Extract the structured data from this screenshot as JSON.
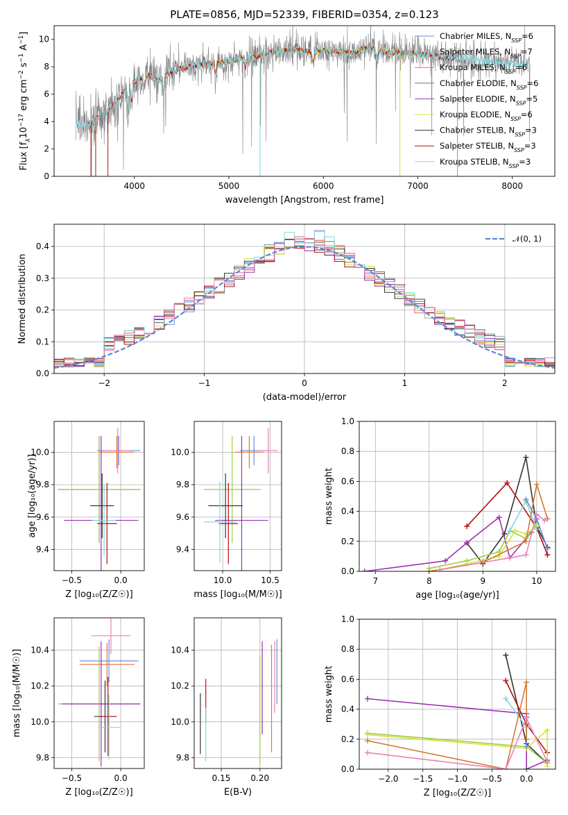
{
  "colors": {
    "Chabrier MILES": "#6a8fd3",
    "Salpeter MILES": "#7fd3d3",
    "Kroupa MILES": "#f07030",
    "Chabrier ELODIE": "#777777",
    "Salpeter ELODIE": "#9b30b0",
    "Kroupa ELODIE": "#d8e040",
    "Chabrier STELIB": "#333333",
    "Salpeter STELIB": "#b01010",
    "Kroupa STELIB": "#7fd8e0",
    "pink": "#e880b8",
    "green": "#9ad040",
    "orange": "#d07a30"
  },
  "chart_data": [
    {
      "id": "spectrum",
      "type": "line",
      "title": "PLATE=0856, MJD=52339, FIBERID=0354, z=0.123",
      "xlabel": "wavelength [Angstrom, rest frame]",
      "ylabel_parts": [
        "Flux [f",
        "λ",
        "10",
        "−17",
        " erg cm",
        "−2",
        " s",
        "−1",
        " A",
        "−1",
        "]"
      ],
      "xlim": [
        3150,
        8450
      ],
      "ylim": [
        0,
        11
      ],
      "xticks": [
        4000,
        5000,
        6000,
        7000,
        8000
      ],
      "yticks": [
        0,
        2,
        4,
        6,
        8,
        10
      ],
      "legend_position": "top-right",
      "continuum_anchors": [
        [
          3380,
          3.9
        ],
        [
          3500,
          3.7
        ],
        [
          3600,
          4.3
        ],
        [
          3680,
          4.5
        ],
        [
          3760,
          5.1
        ],
        [
          3860,
          5.9
        ],
        [
          3950,
          6.7
        ],
        [
          4050,
          7.1
        ],
        [
          4150,
          7.3
        ],
        [
          4250,
          7.0
        ],
        [
          4350,
          7.5
        ],
        [
          4500,
          7.9
        ],
        [
          4700,
          8.2
        ],
        [
          4900,
          8.3
        ],
        [
          5100,
          8.5
        ],
        [
          5300,
          8.8
        ],
        [
          5500,
          9.1
        ],
        [
          5700,
          9.2
        ],
        [
          5900,
          9.1
        ],
        [
          6100,
          9.2
        ],
        [
          6300,
          9.0
        ],
        [
          6500,
          9.4
        ],
        [
          6700,
          9.0
        ],
        [
          6900,
          9.0
        ],
        [
          7100,
          8.9
        ],
        [
          7300,
          8.6
        ],
        [
          7500,
          8.6
        ],
        [
          7700,
          8.4
        ],
        [
          7900,
          8.3
        ],
        [
          8100,
          8.1
        ],
        [
          8200,
          8.2
        ]
      ],
      "legend": [
        {
          "label": "Chabrier MILES, N",
          "sub": "SSP",
          "val": "=6"
        },
        {
          "label": "Salpeter MILES, N",
          "sub": "SSP",
          "val": "=7"
        },
        {
          "label": "Kroupa MILES, N",
          "sub": "SSP",
          "val": "=6"
        },
        {
          "label": "Chabrier ELODIE, N",
          "sub": "SSP",
          "val": "=6"
        },
        {
          "label": "Salpeter ELODIE, N",
          "sub": "SSP",
          "val": "=5"
        },
        {
          "label": "Kroupa ELODIE, N",
          "sub": "SSP",
          "val": "=6"
        },
        {
          "label": "Chabrier STELIB, N",
          "sub": "SSP",
          "val": "=3"
        },
        {
          "label": "Salpeter STELIB, N",
          "sub": "SSP",
          "val": "=3"
        },
        {
          "label": "Kroupa STELIB, N",
          "sub": "SSP",
          "val": "=3"
        }
      ]
    },
    {
      "id": "residuals",
      "type": "step",
      "xlabel": "(data-model)/error",
      "ylabel": "Normed distribution",
      "xlim": [
        -2.5,
        2.5
      ],
      "ylim": [
        0,
        0.47
      ],
      "xticks": [
        -2,
        -1,
        0,
        1,
        2
      ],
      "xticklabels": [
        "−2",
        "−1",
        "0",
        "1",
        "2"
      ],
      "yticks": [
        0.0,
        0.1,
        0.2,
        0.3,
        0.4
      ],
      "grid": true,
      "legend_position": "top-right",
      "legend": "𝒩(0, 1)",
      "bins": 50,
      "series_colors": [
        "#6a8fd3",
        "#f07030",
        "#777777",
        "#9b30b0",
        "#d8e040",
        "#333333",
        "#b01010",
        "#7fd8e0",
        "#e880b8"
      ]
    },
    {
      "id": "age-vs-Z",
      "type": "errorbar",
      "xlabel": "Z [log₁₀(Z/Z☉)]",
      "ylabel": "age  [log₁₀(age/yr)]",
      "xlim": [
        -0.68,
        0.24
      ],
      "ylim": [
        9.27,
        10.19
      ],
      "xticks": [
        -0.5,
        0.0
      ],
      "xticklabels": [
        "−0.5",
        "0.0"
      ],
      "yticks": [
        9.4,
        9.6,
        9.8,
        10.0
      ],
      "grid": true,
      "points": [
        {
          "x": -0.02,
          "y": 10.01,
          "xerr": 0.22,
          "yerr": 0.09,
          "c": "#6a8fd3"
        },
        {
          "x": -0.04,
          "y": 10.0,
          "xerr": 0.18,
          "yerr": 0.1,
          "c": "#f07030"
        },
        {
          "x": -0.22,
          "y": 9.77,
          "xerr": 0.42,
          "yerr": 0.33,
          "c": "#777777"
        },
        {
          "x": -0.22,
          "y": 9.77,
          "xerr": 0.42,
          "yerr": 0.33,
          "c": "#9ad040"
        },
        {
          "x": -0.2,
          "y": 9.58,
          "xerr": 0.38,
          "yerr": 0.52,
          "c": "#9b30b0"
        },
        {
          "x": -0.19,
          "y": 9.67,
          "xerr": 0.12,
          "yerr": 0.2,
          "c": "#333333"
        },
        {
          "x": -0.14,
          "y": 9.56,
          "xerr": 0.1,
          "yerr": 0.25,
          "c": "#b01010"
        },
        {
          "x": -0.17,
          "y": 9.58,
          "xerr": 0.12,
          "yerr": 0.22,
          "c": "#7fd8e0"
        },
        {
          "x": -0.03,
          "y": 10.01,
          "xerr": 0.12,
          "yerr": 0.14,
          "c": "#e880b8"
        }
      ]
    },
    {
      "id": "age-vs-mass",
      "type": "errorbar",
      "xlabel": "mass [log₁₀(M/M☉)]",
      "ylabel": "",
      "xlim": [
        9.7,
        10.62
      ],
      "ylim": [
        9.27,
        10.19
      ],
      "xticks": [
        10.0,
        10.5
      ],
      "xticklabels": [
        "10.0",
        "10.5"
      ],
      "yticks": [
        9.4,
        9.6,
        9.8,
        10.0
      ],
      "grid": true,
      "points": [
        {
          "x": 10.33,
          "y": 10.01,
          "xerr": 0.15,
          "yerr": 0.09,
          "c": "#6a8fd3"
        },
        {
          "x": 10.28,
          "y": 10.0,
          "xerr": 0.15,
          "yerr": 0.1,
          "c": "#f07030"
        },
        {
          "x": 10.1,
          "y": 9.77,
          "xerr": 0.3,
          "yerr": 0.33,
          "c": "#9ad040"
        },
        {
          "x": 10.2,
          "y": 9.58,
          "xerr": 0.28,
          "yerr": 0.52,
          "c": "#9b30b0"
        },
        {
          "x": 10.03,
          "y": 9.67,
          "xerr": 0.18,
          "yerr": 0.2,
          "c": "#333333"
        },
        {
          "x": 10.06,
          "y": 9.56,
          "xerr": 0.1,
          "yerr": 0.25,
          "c": "#b01010"
        },
        {
          "x": 9.97,
          "y": 9.57,
          "xerr": 0.17,
          "yerr": 0.25,
          "c": "#7fd8e0"
        },
        {
          "x": 10.48,
          "y": 10.01,
          "xerr": 0.1,
          "yerr": 0.14,
          "c": "#e880b8"
        }
      ]
    },
    {
      "id": "weight-vs-age",
      "type": "line",
      "xlabel": "age  [log₁₀(age/yr)]",
      "ylabel": "mass weight",
      "xlim": [
        6.7,
        10.35
      ],
      "ylim": [
        0,
        1.0
      ],
      "xticks": [
        7,
        8,
        9,
        10
      ],
      "yticks": [
        0.0,
        0.2,
        0.4,
        0.6,
        0.8,
        1.0
      ],
      "grid": true,
      "series": [
        {
          "c": "#333333",
          "pts": [
            [
              8.7,
              0.19
            ],
            [
              9.0,
              0.05
            ],
            [
              9.4,
              0.25
            ],
            [
              9.8,
              0.76
            ],
            [
              10.0,
              0.3
            ],
            [
              10.2,
              0.16
            ]
          ]
        },
        {
          "c": "#b01010",
          "pts": [
            [
              8.7,
              0.3
            ],
            [
              9.45,
              0.59
            ],
            [
              10.0,
              0.29
            ],
            [
              10.2,
              0.11
            ]
          ]
        },
        {
          "c": "#9b30b0",
          "pts": [
            [
              6.8,
              0.0
            ],
            [
              8.3,
              0.07
            ],
            [
              8.7,
              0.19
            ],
            [
              9.3,
              0.36
            ],
            [
              9.5,
              0.09
            ],
            [
              9.9,
              0.26
            ],
            [
              10.0,
              0.35
            ]
          ]
        },
        {
          "c": "#9ad040",
          "pts": [
            [
              8.0,
              0.02
            ],
            [
              8.7,
              0.07
            ],
            [
              9.3,
              0.13
            ],
            [
              9.5,
              0.27
            ],
            [
              9.8,
              0.22
            ],
            [
              10.0,
              0.32
            ]
          ]
        },
        {
          "c": "#d8e040",
          "pts": [
            [
              8.2,
              0.01
            ],
            [
              8.7,
              0.05
            ],
            [
              9.3,
              0.1
            ],
            [
              9.6,
              0.27
            ],
            [
              9.8,
              0.25
            ],
            [
              10.0,
              0.3
            ]
          ]
        },
        {
          "c": "#7fd8e0",
          "pts": [
            [
              9.5,
              0.27
            ],
            [
              9.8,
              0.47
            ],
            [
              10.0,
              0.28
            ]
          ]
        },
        {
          "c": "#6a8fd3",
          "pts": [
            [
              9.8,
              0.48
            ],
            [
              10.0,
              0.35
            ],
            [
              10.2,
              0.15
            ]
          ]
        },
        {
          "c": "#d07a30",
          "pts": [
            [
              8.0,
              0.0
            ],
            [
              9.0,
              0.06
            ],
            [
              9.8,
              0.2
            ],
            [
              10.0,
              0.58
            ],
            [
              10.2,
              0.35
            ]
          ]
        },
        {
          "c": "#e880b8",
          "pts": [
            [
              8.2,
              0.01
            ],
            [
              9.5,
              0.09
            ],
            [
              9.8,
              0.11
            ],
            [
              10.0,
              0.38
            ],
            [
              10.15,
              0.34
            ]
          ]
        }
      ]
    },
    {
      "id": "mass-vs-Z",
      "type": "errorbar",
      "xlabel": "Z [log₁₀(Z/Z☉)]",
      "ylabel": "mass [log₁₀(M/M☉)]",
      "xlim": [
        -0.68,
        0.24
      ],
      "ylim": [
        9.74,
        10.58
      ],
      "xticks": [
        -0.5,
        0.0
      ],
      "xticklabels": [
        "−0.5",
        "0.0"
      ],
      "yticks": [
        9.8,
        10.0,
        10.2,
        10.4
      ],
      "grid": true,
      "points": [
        {
          "x": -0.1,
          "y": 10.48,
          "xerr": 0.2,
          "yerr": 0.1,
          "c": "#e880b8"
        },
        {
          "x": -0.12,
          "y": 10.34,
          "xerr": 0.3,
          "yerr": 0.12,
          "c": "#6a8fd3"
        },
        {
          "x": -0.14,
          "y": 10.32,
          "xerr": 0.28,
          "yerr": 0.12,
          "c": "#f07030"
        },
        {
          "x": -0.22,
          "y": 10.1,
          "xerr": 0.42,
          "yerr": 0.32,
          "c": "#9ad040"
        },
        {
          "x": -0.2,
          "y": 10.1,
          "xerr": 0.4,
          "yerr": 0.35,
          "c": "#9b30b0"
        },
        {
          "x": -0.16,
          "y": 10.03,
          "xerr": 0.11,
          "yerr": 0.2,
          "c": "#333333"
        },
        {
          "x": -0.13,
          "y": 10.03,
          "xerr": 0.09,
          "yerr": 0.22,
          "c": "#b01010"
        },
        {
          "x": -0.12,
          "y": 9.97,
          "xerr": 0.11,
          "yerr": 0.18,
          "c": "#7fd8e0"
        }
      ]
    },
    {
      "id": "mass-vs-ebv",
      "type": "errorbar",
      "xlabel": "E(B-V)",
      "ylabel": "",
      "xlim": [
        0.115,
        0.228
      ],
      "ylim": [
        9.74,
        10.58
      ],
      "xticks": [
        0.15,
        0.2
      ],
      "xticklabels": [
        "0.15",
        "0.20"
      ],
      "yticks": [
        9.8,
        10.0,
        10.2,
        10.4
      ],
      "grid": true,
      "points": [
        {
          "x": 0.123,
          "y": 9.99,
          "xerr": 0,
          "yerr": 0.17,
          "c": "#333333"
        },
        {
          "x": 0.13,
          "y": 10.12,
          "xerr": 0,
          "yerr": 0.12,
          "c": "#b01010"
        },
        {
          "x": 0.13,
          "y": 9.93,
          "xerr": 0,
          "yerr": 0.15,
          "c": "#7fd8e0"
        },
        {
          "x": 0.2,
          "y": 10.07,
          "xerr": 0,
          "yerr": 0.3,
          "c": "#9ad040"
        },
        {
          "x": 0.203,
          "y": 10.19,
          "xerr": 0,
          "yerr": 0.26,
          "c": "#9b30b0"
        },
        {
          "x": 0.215,
          "y": 10.13,
          "xerr": 0,
          "yerr": 0.3,
          "c": "#f07030"
        },
        {
          "x": 0.219,
          "y": 10.25,
          "xerr": 0,
          "yerr": 0.2,
          "c": "#e880b8"
        },
        {
          "x": 0.222,
          "y": 10.28,
          "xerr": 0,
          "yerr": 0.18,
          "c": "#6a8fd3"
        }
      ]
    },
    {
      "id": "weight-vs-Z",
      "type": "line",
      "xlabel": "Z [log₁₀(Z/Z☉)]",
      "ylabel": "mass weight",
      "xlim": [
        -2.42,
        0.42
      ],
      "ylim": [
        0,
        1.0
      ],
      "xticks": [
        -2.0,
        -1.5,
        -1.0,
        -0.5,
        0.0
      ],
      "xticklabels": [
        "−2.0",
        "−1.5",
        "−1.0",
        "−0.5",
        "0.0"
      ],
      "yticks": [
        0.0,
        0.2,
        0.4,
        0.6,
        0.8,
        1.0
      ],
      "grid": true,
      "series": [
        {
          "c": "#333333",
          "pts": [
            [
              -0.3,
              0.76
            ],
            [
              0.0,
              0.17
            ],
            [
              0.3,
              0.04
            ]
          ]
        },
        {
          "c": "#b01010",
          "pts": [
            [
              -0.3,
              0.59
            ],
            [
              0.0,
              0.3
            ],
            [
              0.3,
              0.11
            ]
          ]
        },
        {
          "c": "#9b30b0",
          "pts": [
            [
              -2.3,
              0.47
            ],
            [
              0.0,
              0.37
            ],
            [
              0.0,
              0.0
            ],
            [
              0.3,
              0.06
            ]
          ]
        },
        {
          "c": "#9ad040",
          "pts": [
            [
              -2.3,
              0.24
            ],
            [
              0.0,
              0.15
            ],
            [
              0.3,
              0.04
            ]
          ]
        },
        {
          "c": "#d8e040",
          "pts": [
            [
              -2.3,
              0.23
            ],
            [
              0.0,
              0.14
            ],
            [
              0.3,
              0.26
            ],
            [
              0.3,
              0.02
            ]
          ]
        },
        {
          "c": "#7fd8e0",
          "pts": [
            [
              -0.3,
              0.47
            ],
            [
              0.0,
              0.28
            ]
          ]
        },
        {
          "c": "#6a8fd3",
          "pts": [
            [
              0.0,
              0.35
            ],
            [
              0.0,
              0.15
            ]
          ]
        },
        {
          "c": "#d07a30",
          "pts": [
            [
              -2.3,
              0.19
            ],
            [
              -0.3,
              0.0
            ],
            [
              0.0,
              0.58
            ],
            [
              0.0,
              0.2
            ]
          ]
        },
        {
          "c": "#e880b8",
          "pts": [
            [
              -2.3,
              0.11
            ],
            [
              -0.3,
              0.0
            ],
            [
              0.0,
              0.34
            ],
            [
              0.3,
              0.05
            ]
          ]
        }
      ]
    }
  ]
}
